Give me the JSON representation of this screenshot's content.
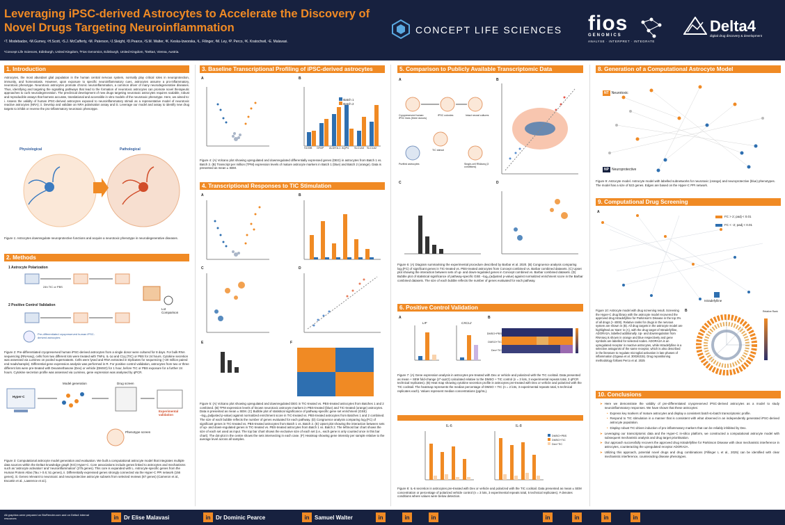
{
  "header": {
    "title": "Leveraging iPSC-derived Astrocytes to Accelerate the Discovery of Novel Drugs Targeting Neuroinflammation",
    "authors": "¹T. Modebadze, ¹M.Gurney, ¹H.Scott, ¹S.J. McCafferty, ¹M. Paterson, ²J.Sleight, ²D.Pearce, ²S.M. Walter, ³K. Keska-Izworska, ³L. Filinger, ³M. Ley, ³P. Perco, ³K. Kratochwil, ¹E. Malavasi.",
    "affiliations": "¹Concept Life Sciences, Edinburgh, United Kingdom, ²Fios Genomics, Edinburgh, United Kingdom, ³Delta4, Vienna, Austria.",
    "logo_cls": "CONCEPT LIFE SCIENCES",
    "logo_fios": "fios",
    "logo_fios_sub": "GENOMICS",
    "logo_fios_tag": "ANALYSE · INTERPRET · INTEGRATE",
    "logo_d4": "Delta4",
    "logo_d4_tag": "digital drug discovery & development"
  },
  "col1": {
    "intro_title": "1. Introduction",
    "intro_text": "Astrocytes, the most abundant glial population in the human central nervous system, normally play critical roles in neuroprotection, immunity, and homeostasis. However, upon exposure to specific neuroinflammatory cues, astrocytes assume a pro-inflammatory, neurotoxic phenotype. Neurotoxic astrocytes promote chronic neuroinflammation, a common driver of many neurodegenerative diseases. Thus, identifying and targeting the signalling pathways that lead to the formation of neurotoxic astrocytes can promote novel therapeutic approaches to curb neurodegeneration. The preclinical development of new drugs targeting neurotoxic astrocytes requires scalable, robust and reproducible assays that harness accurate, translational and accessible in vitro models of the neurotoxic phenotype. Here, we aimed to: i. Assess the validity of human iPSC-derived astrocytes exposed to neuroinflammatory stimuli as a representative model of neurotoxic reactive astrocytes (NRA); ii. Develop and validate an NRA polarisation assay and iii. Leverage our model and assay to identify new drug targets to inhibit or reverse the pro-inflammatory neurotoxic phenotype.",
    "fig1_phys": "Physiological",
    "fig1_path": "Pathological",
    "fig1_caption": "Figure 1: Astrocytes downregulate neuroprotective functions and acquire a neurotoxic phenotype in neurodegenerative diseases.",
    "methods_title": "2. Methods",
    "m_step1": "1  Astrocyte Polarization",
    "m_step2": "2  Positive Control Validation",
    "m_lot": "Lot Comparison",
    "m_pre": "Pre-differentiated cryopreserved human iPSC-derived astrocytes",
    "m_tic": "24h TIC or PBS",
    "fig2_caption": "Figure 2: Pre-differentiated cryopreserved human iPSC-derived astrocytes from a single donor were cultured for 8 days. For bulk RNA sequencing (RNAseq), cells from two different lots were treated with TNFα, IL-1α and C1q (TIC) or PBS for 24 hours. Cytokine secretion was assessed via Luminex on pooled supernatants. Cells were lysed and RNA extracted in triplicates for sequencing (~20 million paired end reads/sample). Differential gene expression analysis was performed in R. For positive control validation, astrocytes from two or three different lots were pre-treated with Dexamethasone (Dex) or vehicle (DMSO) for 1 hour, before TIC or PBS exposure for a further 24 hours. Cytokine secretion profile was assessed via Luminex, gene expression was analysed by qPCR.",
    "fig3_hyper": "Hyper-C",
    "fig3_model": "Model generation",
    "fig3_drug": "Drug screen",
    "fig3_pheno": "Phenotype screen",
    "fig3_exp": "Experimental validation",
    "fig3_caption": "Figure 3: Computational astrocyte model generation and evaluation. We built a computational astrocyte model that integrates multiple data sources within the Delta4 knowledge graph (KG) Hyper-C. Core associations include genes linked to astrocytes and mechanisms such as 'astrocyte activation' and 'neuroinflammation' (275 genes). This core is expanded with L. Astrocyte-specific genes from the Human Protein Atlas (Tau > 0.6; 51 genes), ii. Differentially expressed genes strongly connected via the Hyper-C PPI network (156 genes), iii. Genes relevant to neurotoxic and neuroprotective astrocyte subsets from selected reviews (87 genes) (Cameron et al., Escartin et al., Lawrence et al.)."
  },
  "col2": {
    "s3_title": "3. Baseline Transcriptional Profiling of iPSC-derived astrocytes",
    "s3_leg1": "Batch 1",
    "s3_leg2": "Batch 2",
    "s3_genes": [
      "S100B",
      "GFAP",
      "ALDH1L1",
      "AQP4",
      "SLC1A3",
      "SLC1A2"
    ],
    "fig4_caption": "Figure 4: (A) Volcano plot showing upregulated and downregulated differentially expressed genes (DEG) in astrocytes from Batch 1 vs. Batch 2. (B) Transcript per million (TPM) expression levels of mature astrocyte markers in Batch 1 (blue) and Batch 2 (orange). Data is presented as mean ± SEM.",
    "s4_title": "4. Transcriptional Responses to TIC Stimulation",
    "fig7_caption": "Figure 5: (A) Volcano plot showing upregulated and downregulated DEG in TIC-treated vs. PBS-treated astrocytes from Batches 1 and 2 combined. (B) TPM expression levels of known neurotoxic astrocyte markers in PBS-treated (blue) and TIC-treated (orange) astrocytes. Data is presented as mean ± SEM. (C) Bubble plot of statistical significance of pathway-specific gene set enrichment (GSE) −log₁₀(adjusted p-value) against normalized enrichment score in TIC-treated vs. PBS-treated astrocytes from Batches 1 and 2 combined. The size of each bubble reflects the number of genes evaluated for each pathway. (D) Congruence analysis comparing log₂(FC) of significant genes in TIC-treated vs. PBS-treated astrocytes from Batch 1 vs. Batch 2. (E) Upset plot showing the interaction between sets of up- and down-regulated genes in TIC-treated vs. PBS-treated astrocytes from Batch 1 vs. Batch 2. The leftmost bar chart shows the size of each set used as input. The top bar chart shows the exclusive size of each set (i.e., each gene is only counted once in this bar chart). The dot-plot in the centre shows the sets intersecting in each case. (F) Heatmap showing gene intensity per sample relative to the average level across all samples."
  },
  "col3": {
    "s5_title": "5. Comparison to Publicly Available Transcriptomic Data",
    "s5_a1": "Cryopreserved human iPSC lines (three donors)",
    "s5_a2": "iPSC colonies",
    "s5_a3": "Intact neural cultures",
    "s5_a4": "Purified astrocytes",
    "s5_a5": "TIC stimuli",
    "s5_a6": "Single-cell RNAseq (3 conditions)",
    "fig6_caption": "Figure 6: (A) Diagram summarising the experimental procedure described by Barbar et al. 2020. (B) Congruence analysis comparing log₂(FC) of significant genes in TIC-treated vs. PBS-treated astrocytes from Concept combined vs. Barbar combined datasets. (C) Upset plot showing the interaction between sets of up- and down-regulated genes in Concept combined vs. Barbar combined datasets. (D) Bubble plot of statistical significance of pathway-specific GSE −log₁₀(adjusted p-value) against normalized enrichment score in the Barbar combined datasets. The size of each bubble reflects the number of genes evaluated for each pathway.",
    "s6_title": "6. Positive Control Validation",
    "s6_g1": "LIF",
    "s6_g2": "CXCL2",
    "s6_rows": [
      "DMSO+PBS",
      "DMSO+TIC",
      "Dex+TIC"
    ],
    "fig7_caption": "Figure 7: (A) Gene expression analysis in astrocytes pre-treated with Dex or vehicle and polarized with the TIC cocktail. Data presented as mean + SEM fold-change (2^-ΔΔCt) calculated relative to the DMSO + TIC control (n = 3 lots, 3 experimental repeats total, 3 qPCR technical replicates). (B) Heat map showing cytokine secretion profile in astrocytes pre-treated with Dex or vehicle and polarized with the TIC cocktail. The heatmap represents the median percentage of DMSO + TIC (n = 2 lots, 3 experimental repeats total, 5 technical replicates each). Values represent median concentrations (pg/mL).",
    "s8_il6": "IL-6",
    "s8_il8": "IL-8",
    "s8_leg": [
      "DMSO+PBS",
      "DMSO+TIC",
      "Dex+TIC"
    ],
    "fig8_caption": "Figure 8: IL-6 secretion in astrocytes pre-treated with Dex or vehicle and polarized with the TIC cocktail. Data presented as mean ± SEM concentration or percentage of polarized vehicle control (n = 3 lots, 3 experimental repeats total, 5 technical replicates). # denotes conditions where values were below detection."
  },
  "col4": {
    "s8_title": "8. Generation of a Computational Astrocyte Model",
    "nt_label": "Neurotoxic",
    "np_label": "Neuroprotective",
    "fig9_caption": "Figure 9: Astrocyte model. Astrocyte model with labelled subnetworks for neurotoxic (orange) and neuroprotective (blue) phenotypes. The model has a size of 522 genes. Edges are based on the Hyper-C PPI network.",
    "s9_title": "9. Computational Drug Screening",
    "leg_up": "FC > 2; padj < 0.01",
    "leg_down": "FC < -2; padj < 0.01",
    "drug_label": "Istradefylline",
    "relative_rank": "Relative Rank",
    "fig10_caption": "Figure 10: Astrocyte model with drug screening result. Screening the Hyper-C drug library with the astrocyte model recovered the approved drug Istradefylline for Parkinson's Disease in the top 3% of all drugs (> 4000). Relative ranks for drugs in the nervous system are shown in (B). All drug targets in the astrocyte model are highlighted as 'stars' in (A), with the drug target of Istradefylline, ADORA2A, labelled additionally. Up- and downregulation from RNAseq is shown in orange and blue respectively and gene symbols are labelled for selected nodes. ADORA2A is an upregulated receptor in reactive astrocytes, while Istradefylline is a selective antagonist of the same receptor, which is also described in the literature to regulate microglial activation in late phases of inflammation (Ogawa et al. 30026315). Drug repositioning methodology follows Perco et al. 2025",
    "s10_title": "10. Conclusions",
    "c1": "Here we demonstrate the validity of pre-differentiated cryopreserved iPSC-derived astrocytes as a model to study neuroinflammatory responses. We have shown that these astrocytes:",
    "c1a": "Express key markers of mature astrocytes and display a consistent batch-to-batch transcriptomic profile.",
    "c1b": "Respond to TIC stimulation in a manner that is consistent with what observed in an independently generated iPSC-derived astrocyte population.",
    "c1c": "Display robust TIC-driven induction of pro-inflammatory markers that can be reliably inhibited by Dex.",
    "c2": "Leveraging our transcriptomic data and the Hyper-C in-silico platform, we constructed a computational astrocyte model with subsequent mechanistic analysis and drug target prioritisation.",
    "c3": "Our approach successfully recovers the approved drug Istradefylline for Parkinson Disease with clear mechanistic interference in astrocytes, counteracting the upregulated receptor ADORA2A.",
    "c4": "Utilizing this approach, potential novel drugs and drug combinations (Fillinger L et al., 2025) can be identified with clear mechanistic interference, counteracting disease phenotypes."
  },
  "footer": {
    "note": "All graphics were prepared on BioRender.com and on Delta4 internal resources",
    "people": [
      "Dr Elise Malavasi",
      "Dr Dominic Pearce",
      "Samuel Walter"
    ],
    "li_icon": "in"
  },
  "colors": {
    "navy": "#17213f",
    "orange": "#f08a24",
    "blue": "#2e6fb0"
  }
}
